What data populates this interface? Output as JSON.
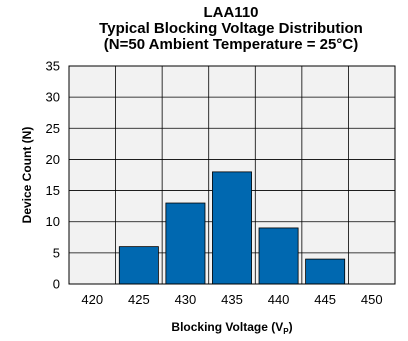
{
  "chart_data": {
    "type": "bar",
    "title_lines": [
      "LAA110",
      "Typical Blocking Voltage Distribution",
      "(N=50 Ambient Temperature = 25°C)"
    ],
    "xlabel": "Blocking Voltage (V",
    "xlabel_sub": "P",
    "xlabel_close": ")",
    "ylabel": "Device Count (N)",
    "categories": [
      "420",
      "425",
      "430",
      "435",
      "440",
      "445",
      "450"
    ],
    "values": [
      0,
      6,
      13,
      18,
      9,
      4,
      0
    ],
    "ylim": [
      0,
      35
    ],
    "yticks": [
      "0",
      "5",
      "10",
      "15",
      "20",
      "25",
      "30",
      "35"
    ],
    "grid": true,
    "bar_color": "#0068b0"
  }
}
